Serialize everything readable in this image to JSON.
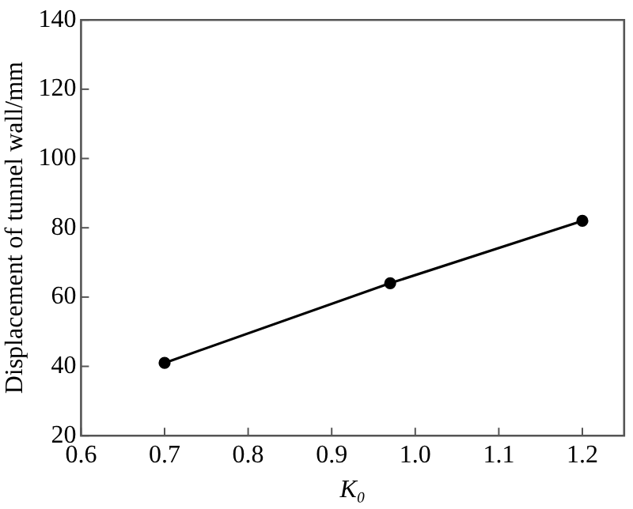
{
  "chart_data": {
    "type": "line",
    "xlabel": "K₀",
    "ylabel": "Displacement of tunnel wall/mm",
    "x": [
      0.7,
      0.97,
      1.2
    ],
    "series": [
      {
        "color": "#000000",
        "values": [
          41,
          64,
          82
        ]
      }
    ],
    "xlim": [
      0.6,
      1.25
    ],
    "ylim": [
      20,
      140
    ],
    "xticks": [
      {
        "value": 0.6,
        "label": "0.6"
      },
      {
        "value": 0.7,
        "label": "0.7"
      },
      {
        "value": 0.8,
        "label": "0.8"
      },
      {
        "value": 0.9,
        "label": "0.9"
      },
      {
        "value": 1.0,
        "label": "1.0"
      },
      {
        "value": 1.1,
        "label": "1.1"
      },
      {
        "value": 1.2,
        "label": "1.2"
      }
    ],
    "yticks": [
      20,
      40,
      60,
      80,
      100,
      120,
      140
    ],
    "grid": false,
    "legend": false,
    "marker": "circle",
    "line_style": "solid"
  }
}
